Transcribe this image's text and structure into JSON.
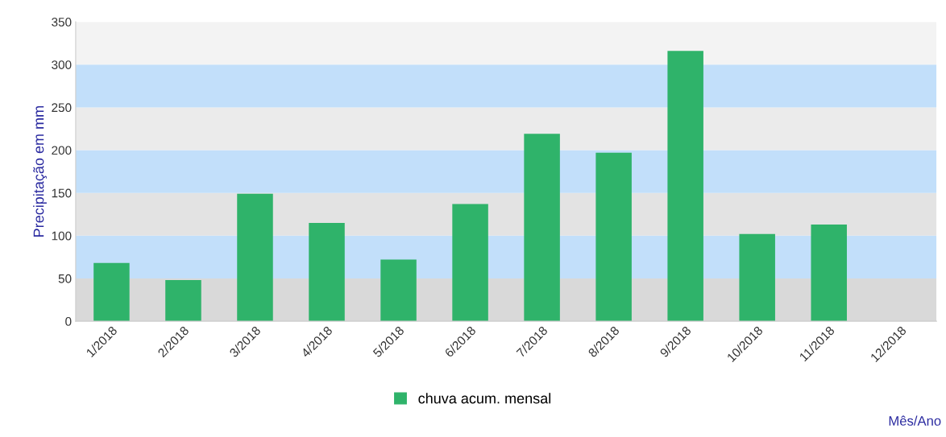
{
  "chart_data": {
    "type": "bar",
    "ylabel": "Precipitação em mm",
    "xlabel": "Mês/Ano",
    "categories": [
      "1/2018",
      "2/2018",
      "3/2018",
      "4/2018",
      "5/2018",
      "6/2018",
      "7/2018",
      "8/2018",
      "9/2018",
      "10/2018",
      "11/2018",
      "12/2018"
    ],
    "series": [
      {
        "name": "chuva acum. mensal",
        "color": "#2fb36a",
        "values": [
          68,
          48,
          149,
          115,
          72,
          137,
          219,
          197,
          316,
          102,
          113,
          null
        ]
      }
    ],
    "ylim": [
      0,
      350
    ],
    "yticks": [
      0,
      50,
      100,
      150,
      200,
      250,
      300,
      350
    ],
    "bands": [
      {
        "axis": "y",
        "from": 0,
        "to": 50,
        "color": "#d9d9d9"
      },
      {
        "axis": "y",
        "from": 50,
        "to": 100,
        "color": "#c2dffa"
      },
      {
        "axis": "y",
        "from": 100,
        "to": 150,
        "color": "#e3e3e3"
      },
      {
        "axis": "y",
        "from": 150,
        "to": 200,
        "color": "#c2dffa"
      },
      {
        "axis": "y",
        "from": 200,
        "to": 250,
        "color": "#ebebeb"
      },
      {
        "axis": "y",
        "from": 250,
        "to": 300,
        "color": "#c2dffa"
      },
      {
        "axis": "y",
        "from": 300,
        "to": 350,
        "color": "#f3f3f3"
      }
    ],
    "grid": false,
    "legend": "bottom"
  }
}
